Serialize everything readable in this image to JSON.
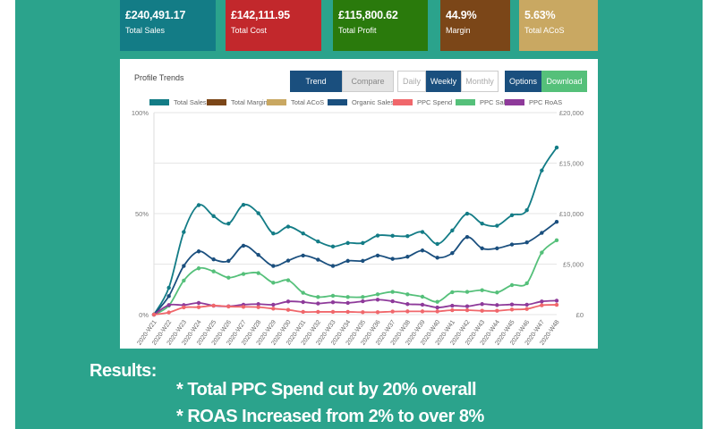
{
  "cards": [
    {
      "value": "£240,491.17",
      "label": "Total Sales",
      "color": "#137c86"
    },
    {
      "value": "£142,111.95",
      "label": "Total Cost",
      "color": "#c2282c"
    },
    {
      "value": "£115,800.62",
      "label": "Total Profit",
      "color": "#2a7a0c"
    },
    {
      "value": "44.9%",
      "label": "Margin",
      "color": "#7b4618"
    },
    {
      "value": "5.63%",
      "label": "Total ACoS",
      "color": "#c9a862"
    }
  ],
  "panel": {
    "title": "Profile Trends",
    "buttons": {
      "trend": "Trend",
      "compare": "Compare",
      "daily": "Daily",
      "weekly": "Weekly",
      "monthly": "Monthly",
      "options": "Options",
      "download": "Download"
    }
  },
  "chart_data": {
    "type": "line",
    "x": [
      "2020-W21",
      "2020-W22",
      "2020-W23",
      "2020-W24",
      "2020-W25",
      "2020-W26",
      "2020-W27",
      "2020-W28",
      "2020-W29",
      "2020-W30",
      "2020-W31",
      "2020-W32",
      "2020-W33",
      "2020-W34",
      "2020-W35",
      "2020-W36",
      "2020-W37",
      "2020-W38",
      "2020-W39",
      "2020-W40",
      "2020-W41",
      "2020-W42",
      "2020-W43",
      "2020-W44",
      "2020-W45",
      "2020-W46",
      "2020-W47",
      "2020-W48"
    ],
    "left_axis": {
      "ticks": [
        "0%",
        "50%",
        "100%"
      ],
      "range": [
        0,
        100
      ]
    },
    "right_axis": {
      "ticks": [
        "£0",
        "£5,000",
        "£10,000",
        "£15,000",
        "£20,000"
      ],
      "range": [
        0,
        20000
      ]
    },
    "grid": true,
    "legend_position": "top",
    "legend": [
      {
        "name": "Total Sales",
        "color": "#137c86"
      },
      {
        "name": "Total Margin",
        "color": "#7b4618"
      },
      {
        "name": "Total ACoS",
        "color": "#c9a862"
      },
      {
        "name": "Organic Sales",
        "color": "#1a4f7e"
      },
      {
        "name": "PPC Spend",
        "color": "#f0676b"
      },
      {
        "name": "PPC Sales",
        "color": "#55c07a"
      },
      {
        "name": "PPC RoAS",
        "color": "#8e3a9a"
      }
    ],
    "series": [
      {
        "name": "Total Sales",
        "axis": "right",
        "color": "#137c86",
        "values": [
          0,
          2660,
          8180,
          10840,
          9750,
          9010,
          10870,
          10040,
          8040,
          8710,
          8040,
          7240,
          6740,
          7090,
          7090,
          7830,
          7800,
          7770,
          8180,
          7000,
          8330,
          9990,
          9010,
          8800,
          9840,
          10340,
          14270,
          16540
        ]
      },
      {
        "name": "Organic Sales",
        "axis": "right",
        "color": "#1a4f7e",
        "values": [
          0,
          1830,
          4820,
          6260,
          5470,
          5320,
          6820,
          5910,
          4820,
          5350,
          5850,
          5440,
          4820,
          5320,
          5320,
          5850,
          5520,
          5730,
          6350,
          5640,
          6090,
          7680,
          6560,
          6560,
          6940,
          7150,
          8090,
          9190
        ]
      },
      {
        "name": "PPC Sales",
        "axis": "right",
        "color": "#55c07a",
        "values": [
          0,
          890,
          3370,
          4580,
          4280,
          3660,
          4020,
          4110,
          3160,
          3400,
          2160,
          1740,
          1860,
          1740,
          1740,
          2010,
          2250,
          2010,
          1770,
          1270,
          2220,
          2250,
          2420,
          2190,
          2920,
          3100,
          6140,
          7360
        ]
      },
      {
        "name": "PPC RoAS",
        "axis": "left",
        "color": "#8e3a9a",
        "values": [
          0,
          4.7,
          4.7,
          5.8,
          4.4,
          4.1,
          4.9,
          5.2,
          4.9,
          6.5,
          6.2,
          5.5,
          6.1,
          5.8,
          6.6,
          7.4,
          6.6,
          5.2,
          4.9,
          3.5,
          4.4,
          4.1,
          5.2,
          4.7,
          5.0,
          4.9,
          6.5,
          6.9
        ]
      },
      {
        "name": "PPC Spend",
        "axis": "right",
        "color": "#f0676b",
        "values": [
          0,
          210,
          710,
          740,
          890,
          800,
          770,
          740,
          590,
          470,
          270,
          270,
          270,
          270,
          240,
          240,
          300,
          320,
          320,
          320,
          440,
          440,
          380,
          380,
          500,
          560,
          920,
          970
        ]
      }
    ]
  },
  "results": {
    "heading": "Results:",
    "line1": "* Total PPC Spend cut by 20% overall",
    "line2": "* ROAS Increased from 2% to over 8%"
  }
}
